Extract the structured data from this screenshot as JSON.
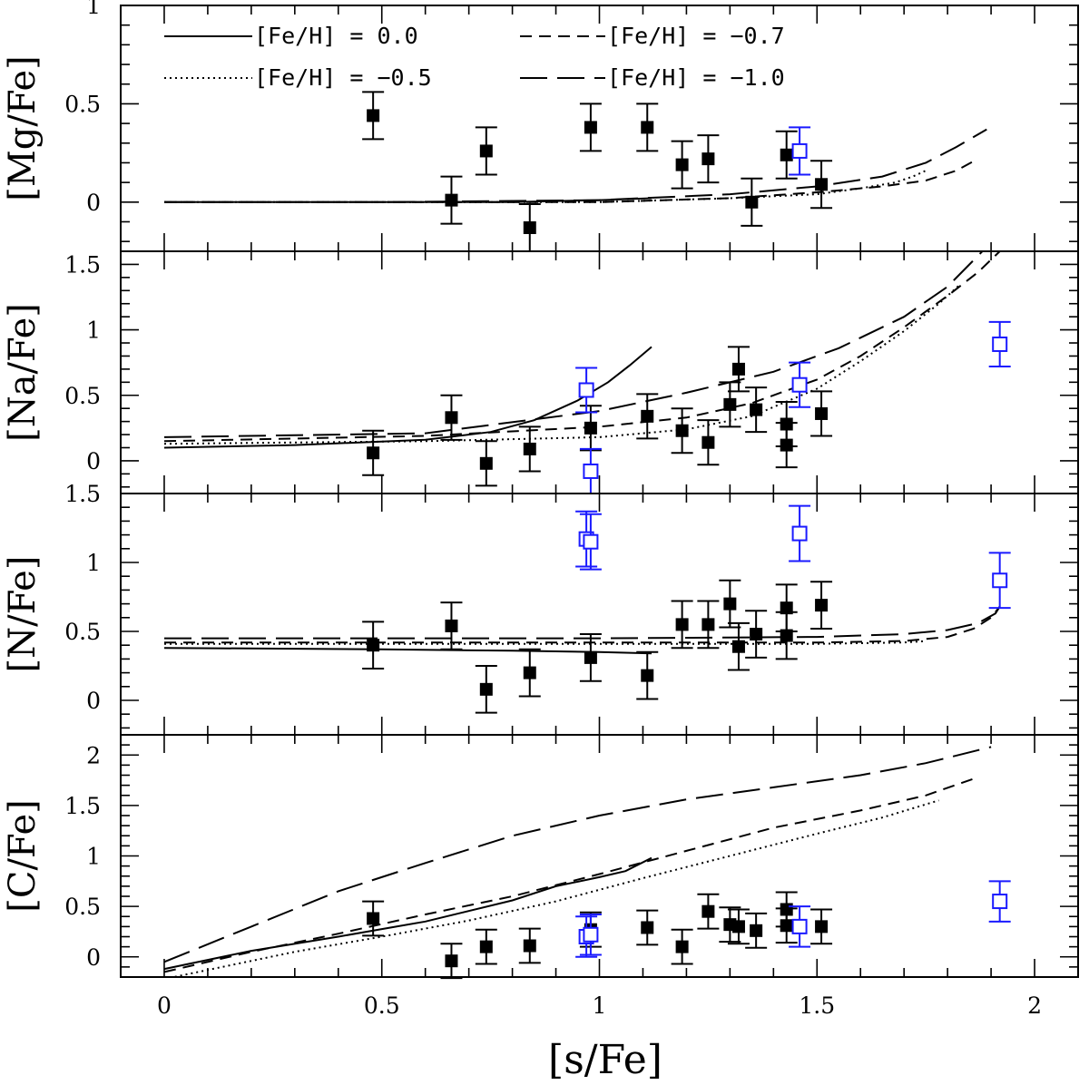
{
  "chart_data": {
    "type": "scatter",
    "xlabel": "[s/Fe]",
    "xlim": [
      -0.1,
      2.1
    ],
    "xticks": [
      "0",
      "0.5",
      "1",
      "1.5",
      "2"
    ],
    "legend": {
      "placement": "top",
      "entries": [
        {
          "label": "[Fe/H] = 0.0",
          "style": "solid"
        },
        {
          "label": "[Fe/H] = −0.7",
          "style": "short-dash"
        },
        {
          "label": "[Fe/H] = −0.5",
          "style": "dotted"
        },
        {
          "label": "[Fe/H] = −1.0",
          "style": "long-dash"
        }
      ]
    },
    "colors": {
      "filled_points": "#000000",
      "open_points": "#1a1aff",
      "models": "#000000"
    },
    "panels": [
      {
        "id": "mg",
        "ylabel": "[Mg/Fe]",
        "ylim": [
          -0.25,
          1.0
        ],
        "yticks": [
          0,
          0.5,
          1
        ],
        "ytick_labels": [
          "0",
          "0.5",
          "1"
        ],
        "filled_points": [
          {
            "x": 0.48,
            "y": 0.44,
            "err": 0.12
          },
          {
            "x": 0.66,
            "y": 0.01,
            "err": 0.12
          },
          {
            "x": 0.74,
            "y": 0.26,
            "err": 0.12
          },
          {
            "x": 0.84,
            "y": -0.13,
            "err": 0.12
          },
          {
            "x": 0.98,
            "y": 0.38,
            "err": 0.12
          },
          {
            "x": 1.11,
            "y": 0.38,
            "err": 0.12
          },
          {
            "x": 1.19,
            "y": 0.19,
            "err": 0.12
          },
          {
            "x": 1.25,
            "y": 0.22,
            "err": 0.12
          },
          {
            "x": 1.35,
            "y": 0.0,
            "err": 0.12
          },
          {
            "x": 1.43,
            "y": 0.24,
            "err": 0.12
          },
          {
            "x": 1.51,
            "y": 0.09,
            "err": 0.12
          }
        ],
        "open_points": [
          {
            "x": 1.46,
            "y": 0.26,
            "err": 0.12
          }
        ],
        "models": [
          {
            "style": "solid",
            "x": [
              0.0,
              0.5,
              0.8,
              1.0,
              1.12
            ],
            "y": [
              0.0,
              0.0,
              0.0,
              0.01,
              0.02
            ]
          },
          {
            "style": "short-dash",
            "x": [
              0.0,
              0.5,
              1.0,
              1.3,
              1.5,
              1.65,
              1.75,
              1.82,
              1.87
            ],
            "y": [
              0.0,
              0.0,
              0.0,
              0.02,
              0.05,
              0.08,
              0.11,
              0.16,
              0.22
            ]
          },
          {
            "style": "dotted",
            "x": [
              0.0,
              0.5,
              1.0,
              1.3,
              1.5,
              1.6,
              1.68,
              1.72,
              1.75
            ],
            "y": [
              0.0,
              0.0,
              0.0,
              0.02,
              0.04,
              0.07,
              0.1,
              0.13,
              0.16
            ]
          },
          {
            "style": "long-dash",
            "x": [
              0.0,
              0.5,
              1.0,
              1.3,
              1.5,
              1.65,
              1.75,
              1.82,
              1.89
            ],
            "y": [
              0.0,
              0.0,
              0.01,
              0.04,
              0.08,
              0.13,
              0.2,
              0.28,
              0.37
            ]
          }
        ]
      },
      {
        "id": "na",
        "ylabel": "[Na/Fe]",
        "ylim": [
          -0.25,
          1.6
        ],
        "yticks": [
          0,
          0.5,
          1,
          1.5
        ],
        "ytick_labels": [
          "0",
          "0.5",
          "1",
          "1.5"
        ],
        "filled_points": [
          {
            "x": 0.48,
            "y": 0.06,
            "err": 0.17
          },
          {
            "x": 0.66,
            "y": 0.33,
            "err": 0.17
          },
          {
            "x": 0.74,
            "y": -0.02,
            "err": 0.17
          },
          {
            "x": 0.84,
            "y": 0.09,
            "err": 0.17
          },
          {
            "x": 0.98,
            "y": 0.25,
            "err": 0.17
          },
          {
            "x": 1.11,
            "y": 0.34,
            "err": 0.17
          },
          {
            "x": 1.19,
            "y": 0.23,
            "err": 0.17
          },
          {
            "x": 1.25,
            "y": 0.14,
            "err": 0.17
          },
          {
            "x": 1.3,
            "y": 0.43,
            "err": 0.17
          },
          {
            "x": 1.32,
            "y": 0.7,
            "err": 0.17
          },
          {
            "x": 1.36,
            "y": 0.39,
            "err": 0.17
          },
          {
            "x": 1.43,
            "y": 0.28,
            "err": 0.17
          },
          {
            "x": 1.43,
            "y": 0.12,
            "err": 0.17
          },
          {
            "x": 1.51,
            "y": 0.36,
            "err": 0.17
          }
        ],
        "open_points": [
          {
            "x": 0.97,
            "y": 0.54,
            "err": 0.17
          },
          {
            "x": 0.98,
            "y": -0.08,
            "err": 0.17
          },
          {
            "x": 1.46,
            "y": 0.58,
            "err": 0.17
          },
          {
            "x": 1.92,
            "y": 0.89,
            "err": 0.17
          }
        ],
        "models": [
          {
            "style": "solid",
            "x": [
              0.0,
              0.3,
              0.6,
              0.75,
              0.85,
              0.95,
              1.02,
              1.07,
              1.12
            ],
            "y": [
              0.1,
              0.12,
              0.16,
              0.22,
              0.31,
              0.46,
              0.6,
              0.73,
              0.87
            ]
          },
          {
            "style": "short-dash",
            "x": [
              0.0,
              0.6,
              1.0,
              1.2,
              1.35,
              1.5,
              1.6,
              1.7,
              1.8,
              1.87,
              1.92
            ],
            "y": [
              0.15,
              0.19,
              0.26,
              0.33,
              0.44,
              0.62,
              0.8,
              1.02,
              1.26,
              1.44,
              1.6
            ]
          },
          {
            "style": "dotted",
            "x": [
              0.0,
              0.6,
              1.0,
              1.2,
              1.35,
              1.5,
              1.6,
              1.7,
              1.78,
              1.83
            ],
            "y": [
              0.13,
              0.15,
              0.18,
              0.24,
              0.34,
              0.55,
              0.76,
              0.99,
              1.2,
              1.35
            ]
          },
          {
            "style": "long-dash",
            "x": [
              0.0,
              0.6,
              1.0,
              1.2,
              1.4,
              1.55,
              1.7,
              1.8,
              1.88
            ],
            "y": [
              0.18,
              0.21,
              0.38,
              0.52,
              0.68,
              0.86,
              1.1,
              1.33,
              1.6
            ]
          }
        ]
      },
      {
        "id": "n",
        "ylabel": "[N/Fe]",
        "ylim": [
          -0.25,
          1.5
        ],
        "yticks": [
          0,
          0.5,
          1,
          1.5
        ],
        "ytick_labels": [
          "0",
          "0.5",
          "1",
          "1.5"
        ],
        "filled_points": [
          {
            "x": 0.48,
            "y": 0.4,
            "err": 0.17
          },
          {
            "x": 0.66,
            "y": 0.54,
            "err": 0.17
          },
          {
            "x": 0.74,
            "y": 0.08,
            "err": 0.17
          },
          {
            "x": 0.84,
            "y": 0.2,
            "err": 0.17
          },
          {
            "x": 0.98,
            "y": 0.31,
            "err": 0.17
          },
          {
            "x": 1.11,
            "y": 0.18,
            "err": 0.17
          },
          {
            "x": 1.19,
            "y": 0.55,
            "err": 0.17
          },
          {
            "x": 1.25,
            "y": 0.55,
            "err": 0.17
          },
          {
            "x": 1.3,
            "y": 0.7,
            "err": 0.17
          },
          {
            "x": 1.32,
            "y": 0.39,
            "err": 0.17
          },
          {
            "x": 1.36,
            "y": 0.48,
            "err": 0.17
          },
          {
            "x": 1.43,
            "y": 0.67,
            "err": 0.17
          },
          {
            "x": 1.43,
            "y": 0.47,
            "err": 0.17
          },
          {
            "x": 1.51,
            "y": 0.69,
            "err": 0.17
          }
        ],
        "open_points": [
          {
            "x": 0.97,
            "y": 1.17,
            "err": 0.2
          },
          {
            "x": 0.98,
            "y": 1.15,
            "err": 0.2
          },
          {
            "x": 1.46,
            "y": 1.21,
            "err": 0.2
          },
          {
            "x": 1.92,
            "y": 0.87,
            "err": 0.2
          }
        ],
        "models": [
          {
            "style": "solid",
            "x": [
              0.0,
              0.5,
              0.8,
              1.0,
              1.12
            ],
            "y": [
              0.38,
              0.37,
              0.36,
              0.35,
              0.34
            ]
          },
          {
            "style": "short-dash",
            "x": [
              0.0,
              0.5,
              1.0,
              1.5,
              1.7,
              1.8,
              1.86,
              1.9,
              1.92
            ],
            "y": [
              0.42,
              0.42,
              0.42,
              0.42,
              0.43,
              0.46,
              0.52,
              0.6,
              0.68
            ]
          },
          {
            "style": "dotted",
            "x": [
              0.0,
              0.5,
              1.0,
              1.5,
              1.7,
              1.75
            ],
            "y": [
              0.41,
              0.41,
              0.41,
              0.41,
              0.42,
              0.43
            ]
          },
          {
            "style": "long-dash",
            "x": [
              0.0,
              0.5,
              1.0,
              1.5,
              1.7,
              1.8,
              1.87,
              1.91,
              1.92
            ],
            "y": [
              0.45,
              0.45,
              0.45,
              0.46,
              0.48,
              0.51,
              0.56,
              0.63,
              0.68
            ]
          }
        ]
      },
      {
        "id": "c",
        "ylabel": "[C/Fe]",
        "ylim": [
          -0.2,
          2.2
        ],
        "yticks": [
          0,
          0.5,
          1,
          1.5,
          2
        ],
        "ytick_labels": [
          "0",
          "0.5",
          "1",
          "1.5",
          "2"
        ],
        "filled_points": [
          {
            "x": 0.48,
            "y": 0.38,
            "err": 0.17
          },
          {
            "x": 0.66,
            "y": -0.04,
            "err": 0.17
          },
          {
            "x": 0.74,
            "y": 0.1,
            "err": 0.17
          },
          {
            "x": 0.84,
            "y": 0.11,
            "err": 0.17
          },
          {
            "x": 0.98,
            "y": 0.27,
            "err": 0.17
          },
          {
            "x": 1.11,
            "y": 0.29,
            "err": 0.17
          },
          {
            "x": 1.19,
            "y": 0.1,
            "err": 0.17
          },
          {
            "x": 1.25,
            "y": 0.45,
            "err": 0.17
          },
          {
            "x": 1.3,
            "y": 0.32,
            "err": 0.17
          },
          {
            "x": 1.32,
            "y": 0.3,
            "err": 0.17
          },
          {
            "x": 1.36,
            "y": 0.26,
            "err": 0.17
          },
          {
            "x": 1.43,
            "y": 0.47,
            "err": 0.17
          },
          {
            "x": 1.43,
            "y": 0.31,
            "err": 0.17
          },
          {
            "x": 1.51,
            "y": 0.3,
            "err": 0.17
          }
        ],
        "open_points": [
          {
            "x": 0.97,
            "y": 0.2,
            "err": 0.2
          },
          {
            "x": 0.98,
            "y": 0.22,
            "err": 0.2
          },
          {
            "x": 1.46,
            "y": 0.3,
            "err": 0.2
          },
          {
            "x": 1.92,
            "y": 0.55,
            "err": 0.2
          }
        ],
        "models": [
          {
            "style": "solid",
            "x": [
              0.0,
              0.2,
              0.4,
              0.6,
              0.8,
              0.9,
              1.0,
              1.06,
              1.12
            ],
            "y": [
              -0.12,
              0.06,
              0.2,
              0.35,
              0.56,
              0.7,
              0.79,
              0.85,
              0.98
            ]
          },
          {
            "style": "short-dash",
            "x": [
              0.0,
              0.2,
              0.4,
              0.6,
              0.8,
              1.0,
              1.2,
              1.4,
              1.6,
              1.75,
              1.87
            ],
            "y": [
              -0.15,
              0.05,
              0.23,
              0.42,
              0.6,
              0.82,
              1.05,
              1.28,
              1.45,
              1.6,
              1.78
            ]
          },
          {
            "style": "dotted",
            "x": [
              0.0,
              0.3,
              0.5,
              0.7,
              0.9,
              1.1,
              1.3,
              1.5,
              1.65,
              1.78
            ],
            "y": [
              -0.22,
              0.05,
              0.2,
              0.36,
              0.55,
              0.78,
              1.0,
              1.22,
              1.38,
              1.55
            ]
          },
          {
            "style": "long-dash",
            "x": [
              0.0,
              0.2,
              0.4,
              0.6,
              0.8,
              1.0,
              1.2,
              1.4,
              1.6,
              1.75,
              1.9
            ],
            "y": [
              -0.05,
              0.3,
              0.65,
              0.93,
              1.2,
              1.4,
              1.56,
              1.68,
              1.8,
              1.92,
              2.08
            ]
          }
        ]
      }
    ]
  }
}
